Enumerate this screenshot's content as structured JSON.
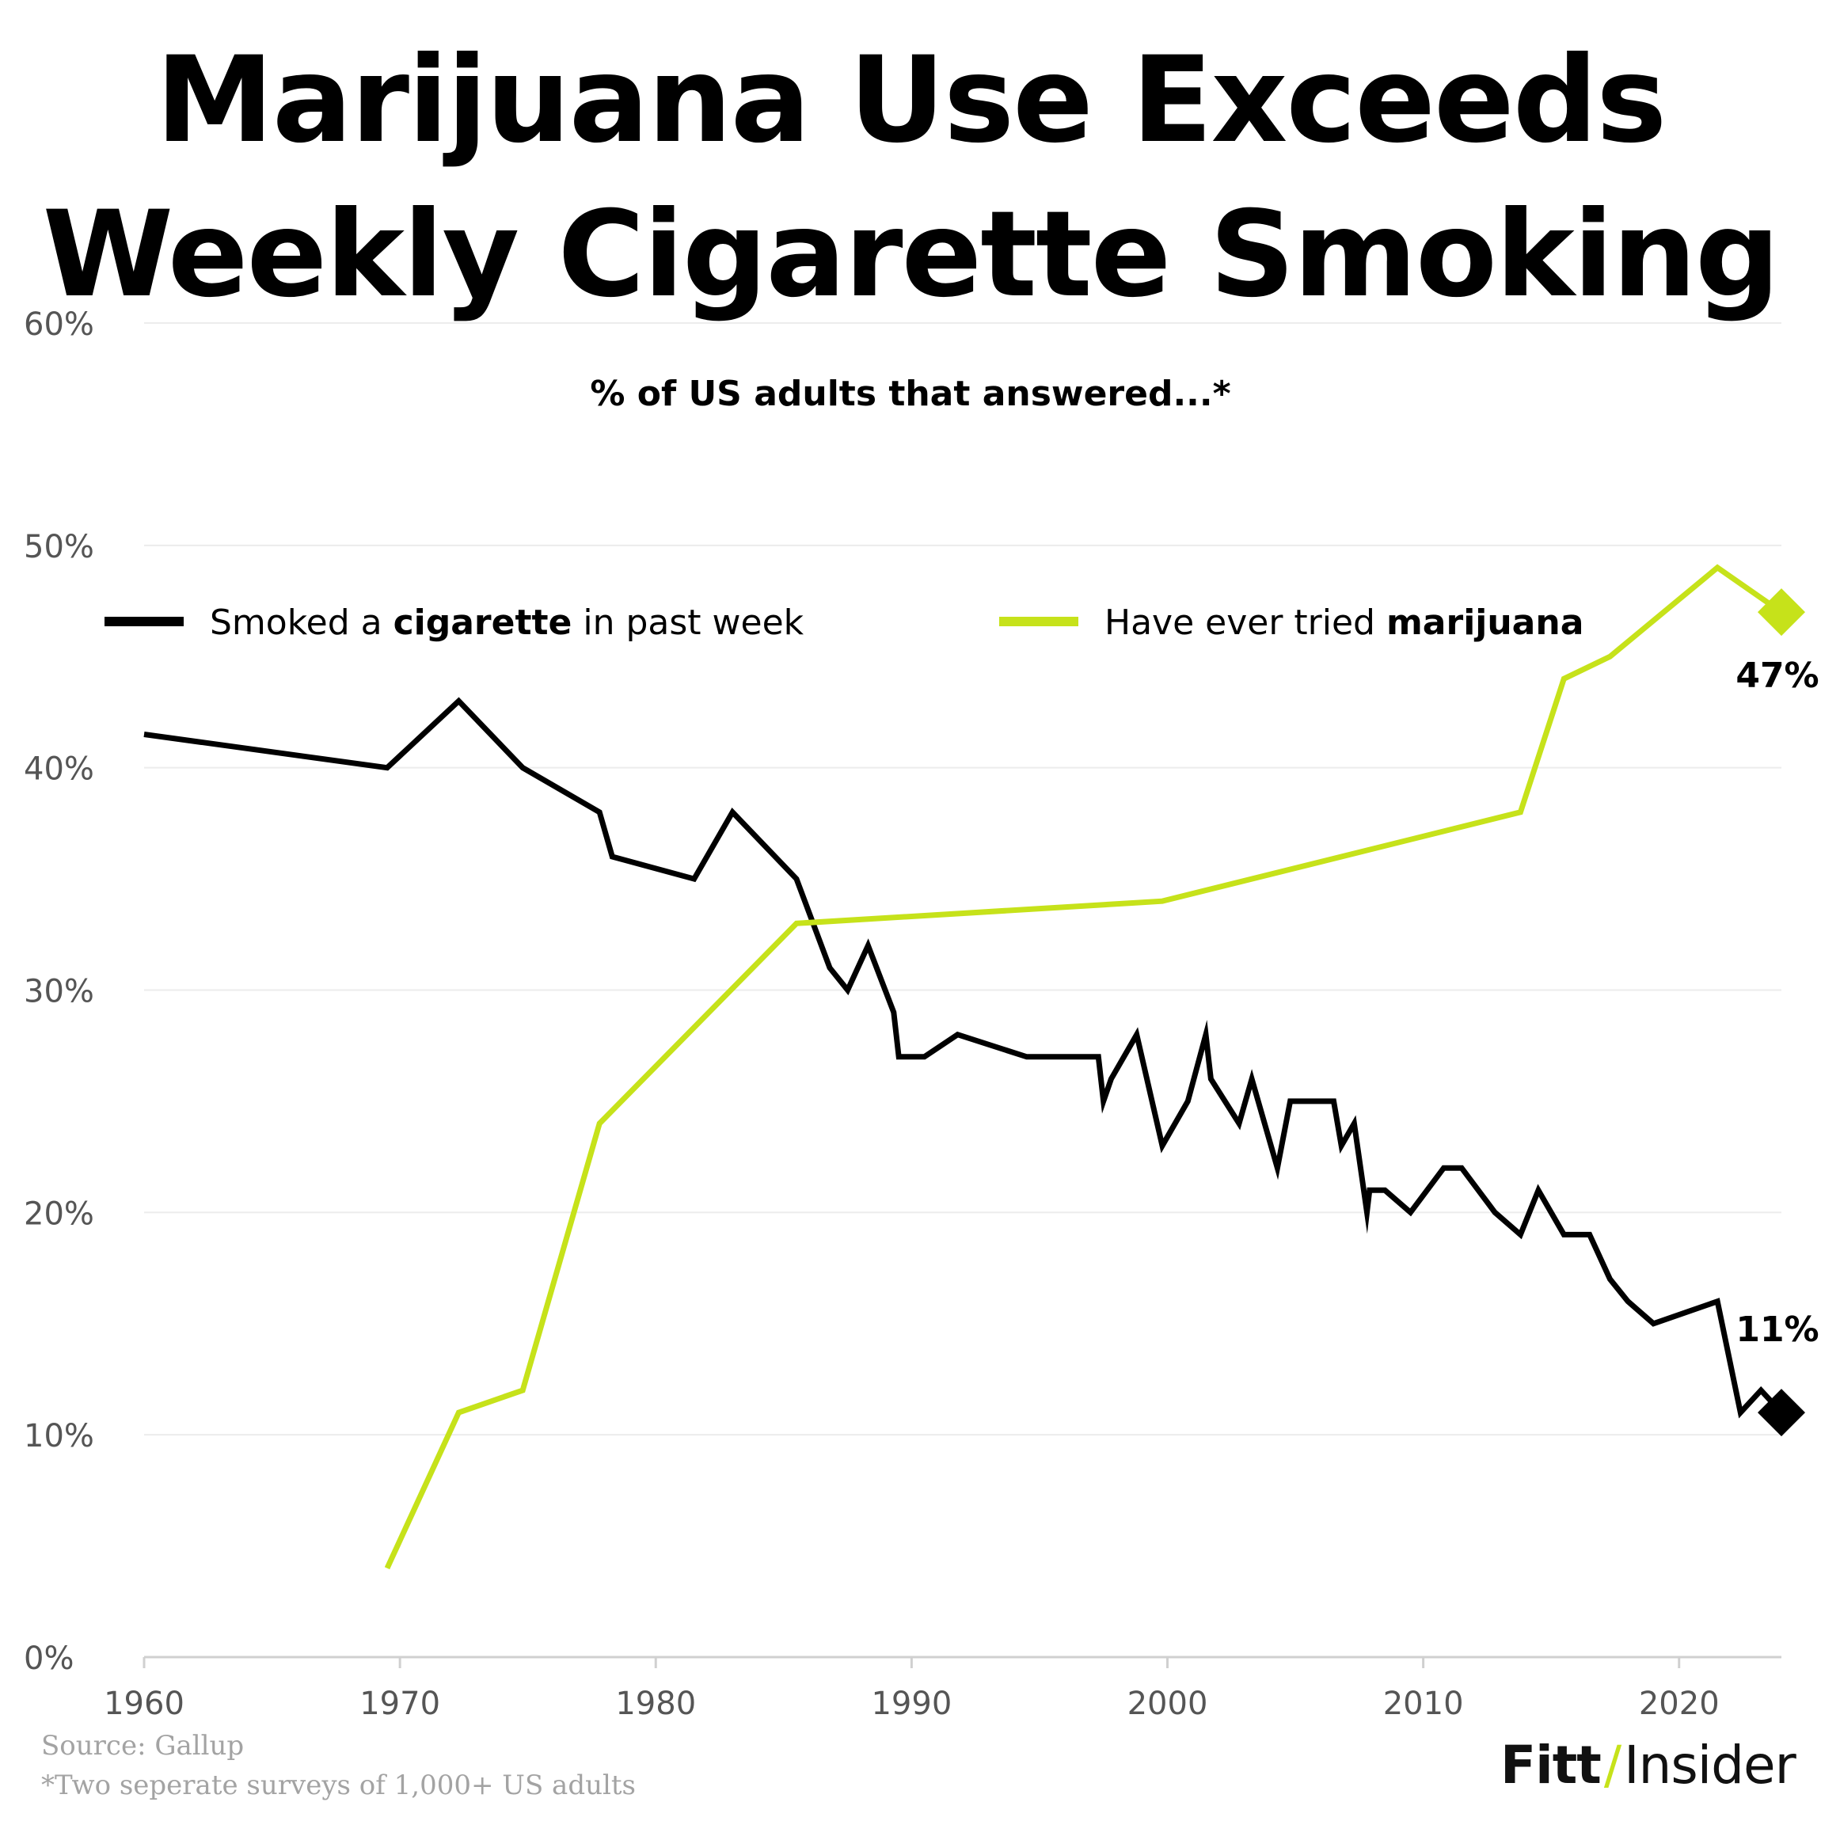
{
  "title_lines": [
    "Marijuana Use Exceeds",
    "Weekly Cigarette Smoking"
  ],
  "subtitle": "% of US adults that answered...*",
  "source": "Source: Gallup",
  "footnote": "*Two seperate surveys of 1,000+ US adults",
  "brand": {
    "left": "Fitt",
    "separator": "/",
    "right": "Insider"
  },
  "colors": {
    "cigarette": "#000000",
    "marijuana": "#c6e21a",
    "grid": "#ececec",
    "axis": "#d0d0d0",
    "tick_label": "#555555"
  },
  "chart_data": {
    "type": "line",
    "xlim": [
      1960,
      2024
    ],
    "ylim": [
      0,
      60
    ],
    "x_ticks": [
      1960,
      1970,
      1980,
      1990,
      2000,
      2010,
      2020
    ],
    "y_ticks": [
      0,
      10,
      20,
      30,
      40,
      50,
      60
    ],
    "y_tick_labels": [
      "0%",
      "10%",
      "20%",
      "30%",
      "40%",
      "50%",
      "60%"
    ],
    "grid": "horizontal",
    "legend_position": "top",
    "series": [
      {
        "key": "cigarette",
        "legend_parts": [
          {
            "text": "Smoked a ",
            "bold": false
          },
          {
            "text": "cigarette",
            "bold": true
          },
          {
            "text": " in past week",
            "bold": false
          }
        ],
        "end_label": "11%",
        "x": [
          1960,
          1969.5,
          1972.3,
          1974.8,
          1977.8,
          1978.3,
          1981.5,
          1983.0,
          1985.5,
          1986.8,
          1987.5,
          1988.3,
          1989.3,
          1989.5,
          1990.5,
          1991.8,
          1994.5,
          1997.3,
          1997.5,
          1997.8,
          1998.8,
          1999.8,
          2000.8,
          2001.5,
          2001.7,
          2002.8,
          2003.3,
          2004.3,
          2004.8,
          2005.5,
          2006.5,
          2006.8,
          2007.3,
          2007.8,
          2007.9,
          2008.5,
          2009.5,
          2010.8,
          2011.5,
          2012.8,
          2013.8,
          2014.5,
          2015.5,
          2016.5,
          2017.3,
          2018.0,
          2019.0,
          2021.5,
          2022.4,
          2023.2,
          2023.6,
          2024.0
        ],
        "values": [
          41.5,
          40.0,
          43.0,
          40.0,
          38.0,
          36.0,
          35.0,
          38.0,
          35.0,
          31.0,
          30.0,
          32.0,
          29.0,
          27.0,
          27.0,
          28.0,
          27.0,
          27.0,
          25.0,
          26.0,
          28.0,
          23.0,
          25.0,
          28.0,
          26.0,
          24.0,
          26.0,
          22.0,
          25.0,
          25.0,
          25.0,
          23.0,
          24.0,
          20.0,
          21.0,
          21.0,
          20.0,
          22.0,
          22.0,
          20.0,
          19.0,
          21.0,
          19.0,
          19.0,
          17.0,
          16.0,
          15.0,
          16.0,
          11.0,
          12.0,
          11.5,
          11.0
        ]
      },
      {
        "key": "marijuana",
        "legend_parts": [
          {
            "text": "Have ever tried ",
            "bold": false
          },
          {
            "text": "marijuana",
            "bold": true
          }
        ],
        "end_label": "47%",
        "x": [
          1969.5,
          1972.3,
          1974.8,
          1977.8,
          1985.5,
          1999.8,
          2013.8,
          2015.5,
          2017.3,
          2021.5,
          2024.0
        ],
        "values": [
          4.0,
          11.0,
          12.0,
          24.0,
          33.0,
          34.0,
          38.0,
          44.0,
          45.0,
          49.0,
          47.0
        ]
      }
    ]
  }
}
